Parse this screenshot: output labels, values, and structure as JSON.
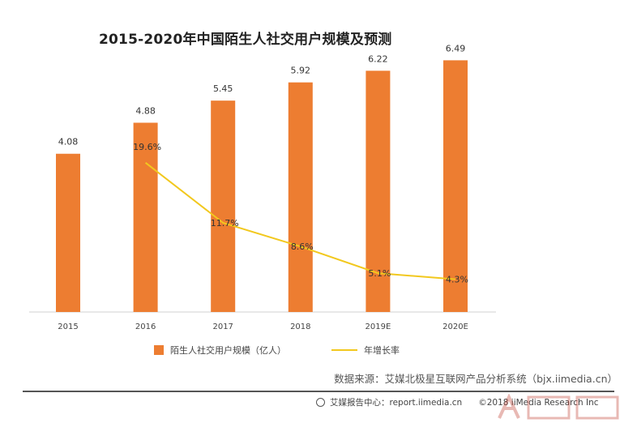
{
  "chart_data": {
    "type": "bar",
    "title": "2015-2020年中国陌生人社交用户规模及预测",
    "categories": [
      "2015",
      "2016",
      "2017",
      "2018",
      "2019E",
      "2020E"
    ],
    "series": [
      {
        "name": "陌生人社交用户规模（亿人）",
        "type": "bar",
        "values": [
          4.08,
          4.88,
          5.45,
          5.92,
          6.22,
          6.49
        ],
        "labels": [
          "4.08",
          "4.88",
          "5.45",
          "5.92",
          "6.22",
          "6.49"
        ],
        "color": "#ed7d31"
      },
      {
        "name": "年增长率",
        "type": "line",
        "values": [
          null,
          19.6,
          11.7,
          8.6,
          5.1,
          4.3
        ],
        "labels": [
          "",
          "19.6%",
          "11.7%",
          "8.6%",
          "5.1%",
          "4.3%"
        ],
        "color": "#f2c81e",
        "axis": "secondary"
      }
    ],
    "ylim": [
      0,
      7
    ],
    "y2lim": [
      0,
      25
    ],
    "grid": false,
    "legend": "bottom"
  },
  "source": "数据来源：艾媒北极星互联网产品分析系统（bjx.iimedia.cn）",
  "footer": {
    "center": "艾媒报告中心：report.iimedia.cn",
    "copyright": "©2018 iiMedia Research Inc"
  }
}
